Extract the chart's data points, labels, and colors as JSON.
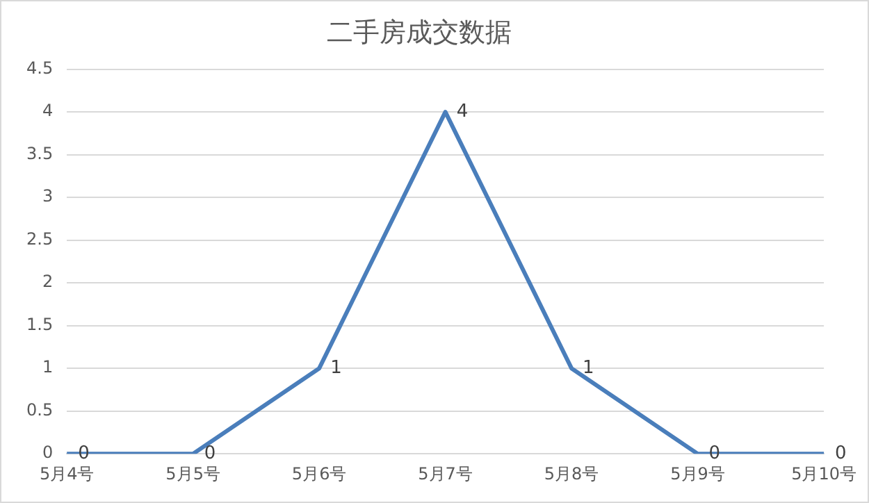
{
  "chart_data": {
    "type": "line",
    "title": "二手房成交数据",
    "categories": [
      "5月4号",
      "5月5号",
      "5月6号",
      "5月7号",
      "5月8号",
      "5月9号",
      "5月10号"
    ],
    "series": [
      {
        "color": "#4a7ebb",
        "values": [
          0,
          0,
          1,
          4,
          1,
          0,
          0
        ]
      }
    ],
    "ylim": [
      0,
      4.5
    ],
    "yticks": [
      0,
      0.5,
      1,
      1.5,
      2,
      2.5,
      3,
      3.5,
      4,
      4.5
    ],
    "grid": "y",
    "legend": false,
    "marker": "none",
    "line_style": "solid",
    "data_labels": true
  }
}
